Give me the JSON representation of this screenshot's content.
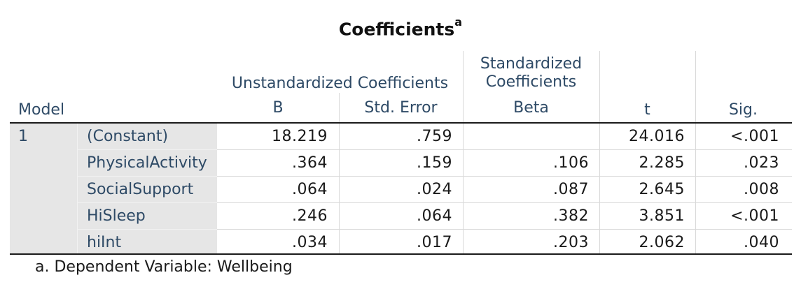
{
  "table": {
    "title": "Coefficients",
    "title_superscript": "a",
    "header": {
      "model": "Model",
      "unstd_group": "Unstandardized Coefficients",
      "std_group_line1": "Standardized",
      "std_group_line2": "Coefficients",
      "b": "B",
      "std_error": "Std. Error",
      "beta": "Beta",
      "t": "t",
      "sig": "Sig."
    },
    "model_number": "1",
    "rows": [
      {
        "label": "(Constant)",
        "b": "18.219",
        "std_error": ".759",
        "beta": "",
        "t": "24.016",
        "sig": "<.001"
      },
      {
        "label": "PhysicalActivity",
        "b": ".364",
        "std_error": ".159",
        "beta": ".106",
        "t": "2.285",
        "sig": ".023"
      },
      {
        "label": "SocialSupport",
        "b": ".064",
        "std_error": ".024",
        "beta": ".087",
        "t": "2.645",
        "sig": ".008"
      },
      {
        "label": "HiSleep",
        "b": ".246",
        "std_error": ".064",
        "beta": ".382",
        "t": "3.851",
        "sig": "<.001"
      },
      {
        "label": "hiInt",
        "b": ".034",
        "std_error": ".017",
        "beta": ".203",
        "t": "2.062",
        "sig": ".040"
      }
    ],
    "footnote": "a. Dependent Variable: Wellbeing"
  },
  "colors": {
    "header_text": "#2e4a66",
    "label_shade": "#e6e6e6",
    "rule": "#1a1a1a",
    "grid": "#d9d9d9"
  }
}
